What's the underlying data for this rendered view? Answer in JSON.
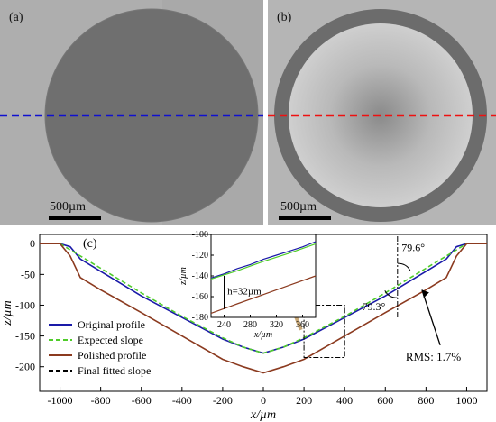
{
  "panels": {
    "a": {
      "label": "(a)",
      "scale_label": "500µm",
      "line_color": "#1010d0"
    },
    "b": {
      "label": "(b)",
      "scale_label": "500µm",
      "line_color": "#ee1111"
    }
  },
  "chart_data": {
    "type": "line",
    "label": "(c)",
    "xlabel": "x/µm",
    "ylabel": "z/µm",
    "xlim": [
      -1100,
      1100
    ],
    "ylim": [
      -240,
      15
    ],
    "xticks": [
      -1000,
      -800,
      -600,
      -400,
      -200,
      0,
      200,
      400,
      600,
      800,
      1000
    ],
    "yticks": [
      0,
      -50,
      -100,
      -150,
      -200
    ],
    "legend_position": "bottom-left",
    "series": [
      {
        "name": "Original profile",
        "color": "#1a1aa8",
        "style": "solid",
        "x": [
          -1100,
          -1000,
          -950,
          -900,
          -800,
          -600,
          -400,
          -200,
          -100,
          0,
          100,
          200,
          400,
          600,
          800,
          900,
          950,
          1000,
          1100
        ],
        "y": [
          0,
          0,
          -5,
          -25,
          -45,
          -85,
          -120,
          -155,
          -168,
          -178,
          -168,
          -155,
          -120,
          -85,
          -45,
          -25,
          -5,
          0,
          0
        ]
      },
      {
        "name": "Expected slope",
        "color": "#4fcc2a",
        "style": "dashed",
        "x": [
          -1000,
          -900,
          -800,
          -600,
          -400,
          -200,
          -100,
          0,
          100,
          200,
          400,
          600,
          800,
          900,
          1000
        ],
        "y": [
          0,
          -20,
          -40,
          -80,
          -118,
          -153,
          -168,
          -178,
          -168,
          -153,
          -118,
          -80,
          -40,
          -20,
          0
        ]
      },
      {
        "name": "Polished profile",
        "color": "#8b3a1f",
        "style": "solid",
        "x": [
          -1100,
          -1000,
          -950,
          -900,
          -800,
          -600,
          -400,
          -200,
          -100,
          0,
          100,
          200,
          400,
          600,
          800,
          900,
          950,
          1000,
          1100
        ],
        "y": [
          0,
          0,
          -20,
          -55,
          -75,
          -112,
          -150,
          -188,
          -200,
          -210,
          -200,
          -188,
          -150,
          -112,
          -75,
          -55,
          -20,
          0,
          0
        ]
      },
      {
        "name": "Final fitted slope",
        "color": "#000000",
        "style": "dashed",
        "x": [],
        "y": []
      }
    ],
    "annotations": {
      "angle_top": "79.6°",
      "angle_bottom": "79.3°",
      "rms": "RMS: 1.7%"
    },
    "inset": {
      "xlim": [
        220,
        380
      ],
      "ylim": [
        -180,
        -100
      ],
      "xticks": [
        240,
        280,
        320,
        360
      ],
      "yticks": [
        -100,
        -120,
        -140,
        -160,
        -180
      ],
      "xlabel": "x/µm",
      "ylabel": "z/µm",
      "h_label": "h=32µm",
      "series": [
        {
          "name": "Original profile",
          "color": "#1a1aa8",
          "x": [
            220,
            240,
            260,
            280,
            300,
            320,
            340,
            360,
            380
          ],
          "y": [
            -142,
            -138,
            -133,
            -129,
            -124,
            -120,
            -116,
            -112,
            -107
          ]
        },
        {
          "name": "Expected slope",
          "color": "#4fcc2a",
          "x": [
            220,
            260,
            300,
            340,
            380
          ],
          "y": [
            -143,
            -135,
            -126,
            -118,
            -109
          ]
        },
        {
          "name": "Polished profile",
          "color": "#8b3a1f",
          "x": [
            220,
            260,
            300,
            340,
            380
          ],
          "y": [
            -176,
            -167,
            -158,
            -149,
            -140
          ]
        }
      ]
    }
  }
}
